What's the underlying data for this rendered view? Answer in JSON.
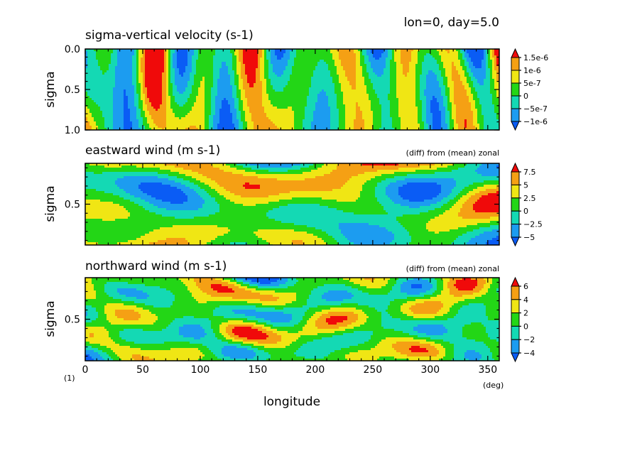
{
  "figure": {
    "header": "lon=0, day=5.0",
    "corner_label": "(1)",
    "x_unit": "(deg)",
    "xlabel": "longitude"
  },
  "colors": {
    "blue_dark": "#0a5cf5",
    "blue_mid": "#1c9cf0",
    "cyan": "#14d9b4",
    "green": "#23d616",
    "yellow": "#f0e614",
    "orange": "#f5a014",
    "red": "#f00a0a"
  },
  "chart_data": [
    {
      "type": "heatmap",
      "title": "sigma-vertical velocity (s-1)",
      "subtitle": "",
      "xlabel": "",
      "ylabel": "sigma",
      "xlim": [
        0,
        360
      ],
      "ylim": [
        1.0,
        0.0
      ],
      "xticks": [
        0,
        50,
        100,
        150,
        200,
        250,
        300,
        350
      ],
      "yticks": [
        {
          "value": 0.0,
          "label": "0.0"
        },
        {
          "value": 0.5,
          "label": "0.5"
        },
        {
          "value": 1.0,
          "label": "1.0"
        }
      ],
      "colorbar_labels": [
        "1.5e-6",
        "1e-6",
        "5e-7",
        "0",
        "−5e-7",
        "−1e-6"
      ],
      "levels": [
        -1.5e-06,
        -1e-06,
        -5e-07,
        0,
        5e-07,
        1e-06,
        1.5e-06
      ],
      "grid": false
    },
    {
      "type": "heatmap",
      "title": "eastward wind (m s-1)",
      "subtitle": "(diff) from (mean) zonal",
      "xlabel": "",
      "ylabel": "sigma",
      "xlim": [
        0,
        360
      ],
      "ylim": [
        0.95,
        0.05
      ],
      "xticks": [
        0,
        50,
        100,
        150,
        200,
        250,
        300,
        350
      ],
      "yticks": [
        {
          "value": 0.5,
          "label": "0.5"
        }
      ],
      "colorbar_labels": [
        "7.5",
        "5",
        "2.5",
        "0",
        "−2.5",
        "−5"
      ],
      "levels": [
        -7.5,
        -5,
        -2.5,
        0,
        2.5,
        5,
        7.5
      ],
      "grid": false
    },
    {
      "type": "heatmap",
      "title": "northward wind (m s-1)",
      "subtitle": "(diff) from (mean) zonal",
      "xlabel": "longitude",
      "ylabel": "sigma",
      "xlim": [
        0,
        360
      ],
      "ylim": [
        0.95,
        0.05
      ],
      "xticks": [
        0,
        50,
        100,
        150,
        200,
        250,
        300,
        350
      ],
      "yticks": [
        {
          "value": 0.5,
          "label": "0.5"
        }
      ],
      "colorbar_labels": [
        "6",
        "4",
        "2",
        "0",
        "−2",
        "−4"
      ],
      "levels": [
        -6,
        -4,
        -2,
        0,
        2,
        4,
        6
      ],
      "grid": false
    }
  ]
}
